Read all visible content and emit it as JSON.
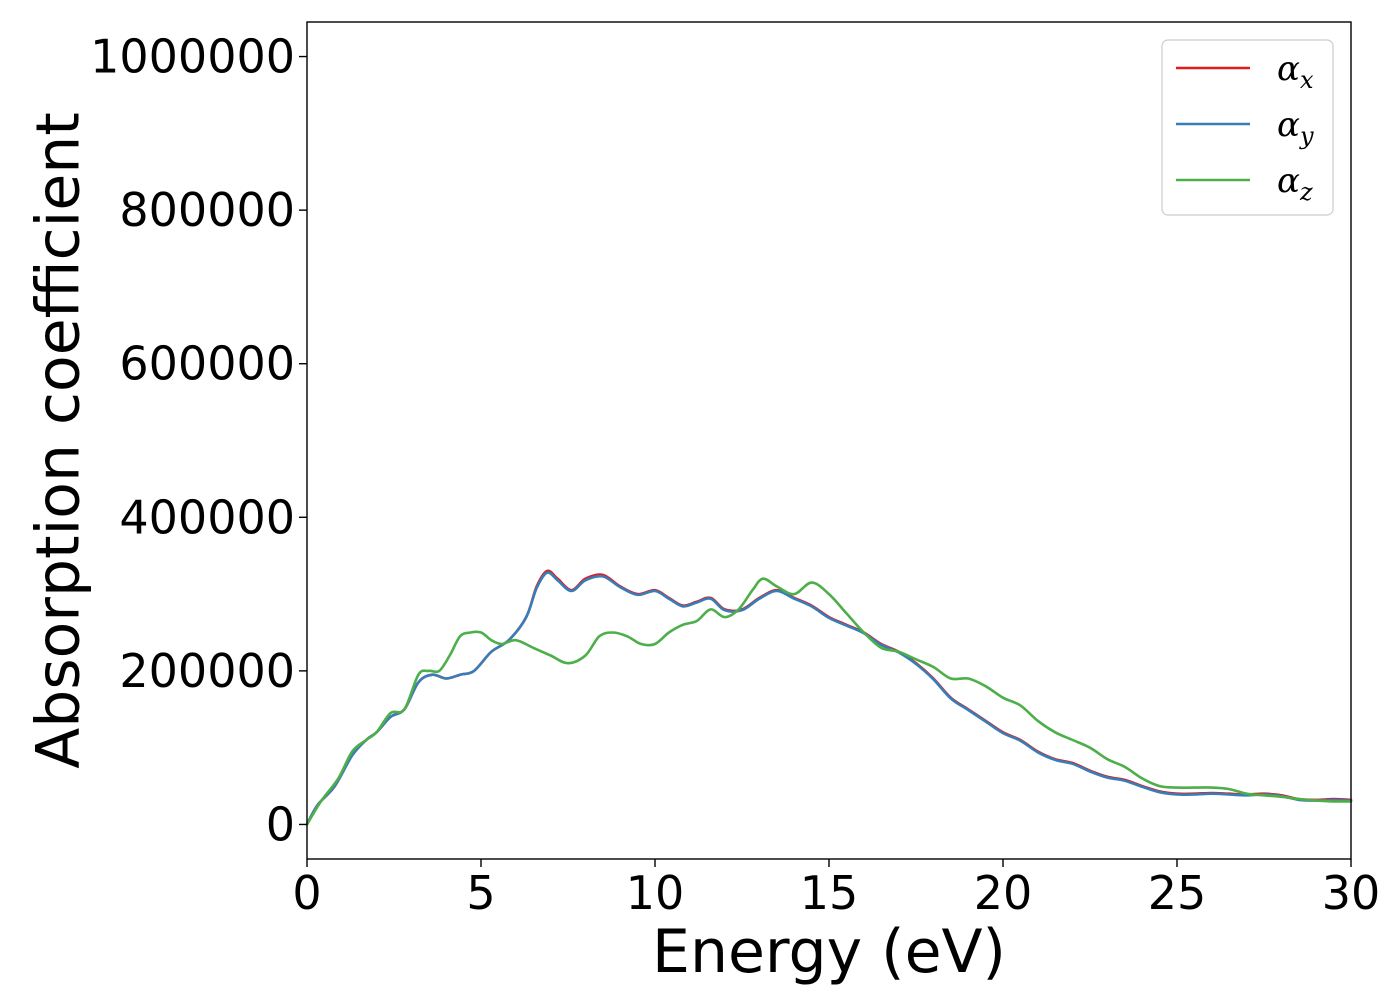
{
  "chart_data": {
    "type": "line",
    "title": "",
    "xlabel": "Energy (eV)",
    "ylabel": "Absorption coefficient",
    "xlim": [
      0,
      30
    ],
    "ylim": [
      -45000,
      1045000
    ],
    "xticks": [
      0,
      5,
      10,
      15,
      20,
      25,
      30
    ],
    "xtick_labels": [
      "0",
      "5",
      "10",
      "15",
      "20",
      "25",
      "30"
    ],
    "yticks": [
      0,
      200000,
      400000,
      600000,
      800000,
      1000000
    ],
    "ytick_labels": [
      "0",
      "200000",
      "400000",
      "600000",
      "800000",
      "1000000"
    ],
    "grid": false,
    "legend_position": "top-right",
    "series": [
      {
        "name": "α_x",
        "legend_symbol": "α",
        "legend_sub": "x",
        "color": "#e41a1c",
        "x": [
          0,
          0.3,
          0.8,
          1.3,
          1.7,
          2.0,
          2.4,
          2.8,
          3.2,
          3.6,
          4.0,
          4.4,
          4.8,
          5.3,
          5.8,
          6.3,
          6.6,
          6.9,
          7.2,
          7.6,
          8.0,
          8.5,
          9.0,
          9.5,
          10.0,
          10.4,
          10.8,
          11.2,
          11.6,
          12.0,
          12.5,
          13.0,
          13.5,
          14.0,
          14.5,
          15.0,
          15.5,
          16.0,
          16.5,
          17.0,
          17.5,
          18.0,
          18.5,
          19.0,
          19.5,
          20.0,
          20.5,
          21.0,
          21.5,
          22.0,
          22.5,
          23.0,
          23.5,
          24.0,
          24.5,
          25.0,
          25.5,
          26.0,
          26.5,
          27.0,
          27.5,
          28.0,
          28.5,
          29.0,
          29.5,
          30.0
        ],
        "y": [
          0,
          25000,
          50000,
          90000,
          110000,
          120000,
          140000,
          150000,
          185000,
          195000,
          190000,
          195000,
          200000,
          225000,
          240000,
          270000,
          310000,
          330000,
          320000,
          305000,
          320000,
          325000,
          310000,
          300000,
          305000,
          295000,
          285000,
          290000,
          295000,
          280000,
          280000,
          295000,
          305000,
          295000,
          285000,
          270000,
          260000,
          250000,
          235000,
          225000,
          210000,
          190000,
          165000,
          150000,
          135000,
          120000,
          110000,
          95000,
          85000,
          80000,
          70000,
          62000,
          58000,
          50000,
          43000,
          40000,
          40000,
          41000,
          40000,
          39000,
          40000,
          38000,
          33000,
          32000,
          33000,
          32000
        ]
      },
      {
        "name": "α_y",
        "legend_symbol": "α",
        "legend_sub": "y",
        "color": "#377eb8",
        "x": [
          0,
          0.3,
          0.8,
          1.3,
          1.7,
          2.0,
          2.4,
          2.8,
          3.2,
          3.6,
          4.0,
          4.4,
          4.8,
          5.3,
          5.8,
          6.3,
          6.6,
          6.9,
          7.2,
          7.6,
          8.0,
          8.5,
          9.0,
          9.5,
          10.0,
          10.4,
          10.8,
          11.2,
          11.6,
          12.0,
          12.5,
          13.0,
          13.5,
          14.0,
          14.5,
          15.0,
          15.5,
          16.0,
          16.5,
          17.0,
          17.5,
          18.0,
          18.5,
          19.0,
          19.5,
          20.0,
          20.5,
          21.0,
          21.5,
          22.0,
          22.5,
          23.0,
          23.5,
          24.0,
          24.5,
          25.0,
          25.5,
          26.0,
          26.5,
          27.0,
          27.5,
          28.0,
          28.5,
          29.0,
          29.5,
          30.0
        ],
        "y": [
          0,
          25000,
          50000,
          90000,
          110000,
          120000,
          140000,
          150000,
          185000,
          195000,
          190000,
          195000,
          200000,
          225000,
          240000,
          270000,
          308000,
          328000,
          318000,
          304000,
          318000,
          323000,
          309000,
          299000,
          304000,
          294000,
          284000,
          289000,
          294000,
          279000,
          279000,
          294000,
          304000,
          294000,
          284000,
          269000,
          259000,
          249000,
          234000,
          224000,
          209000,
          189000,
          164000,
          149000,
          134000,
          119000,
          109000,
          94000,
          84000,
          79000,
          69000,
          61000,
          57000,
          49000,
          42000,
          39000,
          39000,
          40000,
          39000,
          38000,
          39000,
          37000,
          32000,
          31000,
          32000,
          31000
        ]
      },
      {
        "name": "α_z",
        "legend_symbol": "α",
        "legend_sub": "z",
        "color": "#4daf4a",
        "x": [
          0,
          0.4,
          0.9,
          1.3,
          1.7,
          2.0,
          2.4,
          2.8,
          3.2,
          3.5,
          3.8,
          4.1,
          4.4,
          4.7,
          5.0,
          5.3,
          5.6,
          6.0,
          6.5,
          7.0,
          7.5,
          8.0,
          8.4,
          8.8,
          9.2,
          9.6,
          10.0,
          10.4,
          10.8,
          11.2,
          11.6,
          12.0,
          12.4,
          12.8,
          13.1,
          13.5,
          14.0,
          14.5,
          15.0,
          15.5,
          16.0,
          16.5,
          17.0,
          17.5,
          18.0,
          18.5,
          19.0,
          19.5,
          20.0,
          20.5,
          21.0,
          21.5,
          22.0,
          22.5,
          23.0,
          23.5,
          24.0,
          24.5,
          25.0,
          25.5,
          26.0,
          26.5,
          27.0,
          27.5,
          28.0,
          28.5,
          29.0,
          29.5,
          30.0
        ],
        "y": [
          0,
          30000,
          60000,
          95000,
          110000,
          120000,
          145000,
          150000,
          195000,
          200000,
          200000,
          220000,
          245000,
          250000,
          250000,
          240000,
          235000,
          240000,
          230000,
          220000,
          210000,
          220000,
          245000,
          250000,
          245000,
          235000,
          235000,
          250000,
          260000,
          265000,
          280000,
          270000,
          280000,
          305000,
          320000,
          310000,
          300000,
          315000,
          300000,
          275000,
          250000,
          230000,
          225000,
          215000,
          205000,
          190000,
          190000,
          180000,
          165000,
          155000,
          135000,
          120000,
          110000,
          100000,
          85000,
          75000,
          60000,
          50000,
          48000,
          48000,
          48000,
          46000,
          40000,
          38000,
          36000,
          33000,
          31000,
          30000,
          30000
        ]
      }
    ]
  }
}
